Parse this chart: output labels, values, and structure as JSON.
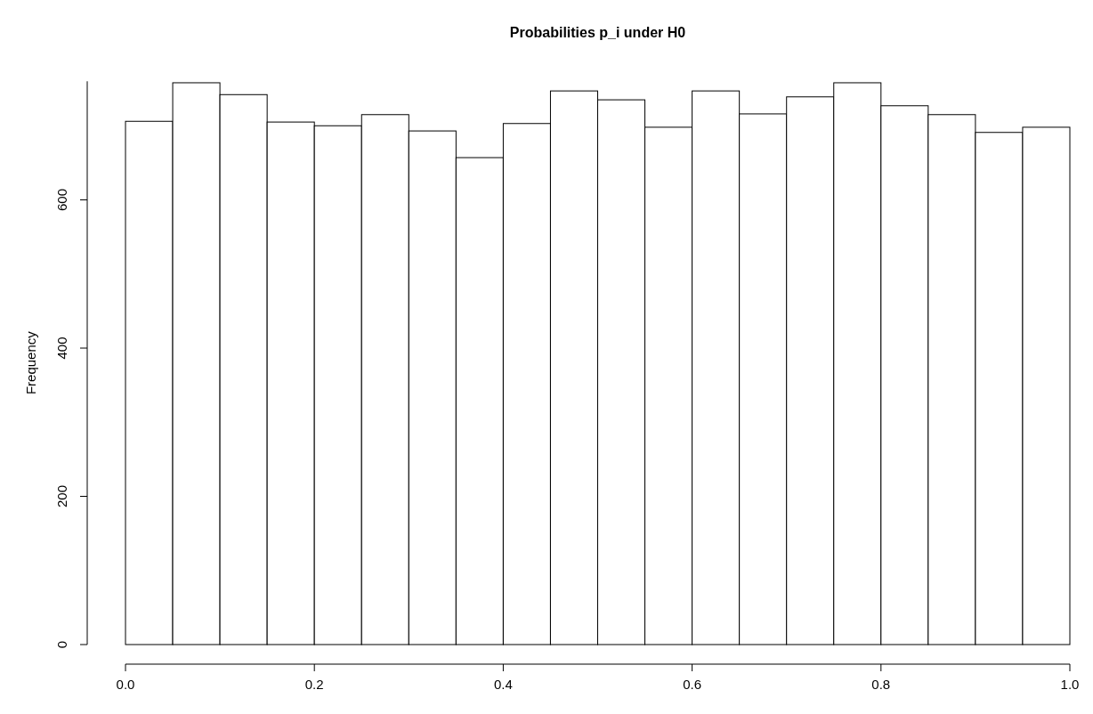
{
  "chart_data": {
    "type": "histogram",
    "title": "Probabilities p_i under H0",
    "ylabel": "Frequency",
    "bins": [
      0,
      0.05,
      0.1,
      0.15,
      0.2,
      0.25,
      0.3,
      0.35,
      0.4,
      0.45,
      0.5,
      0.55,
      0.6,
      0.65,
      0.7,
      0.75,
      0.8,
      0.85,
      0.9,
      0.95,
      1.0
    ],
    "values": [
      706,
      758,
      742,
      705,
      700,
      715,
      693,
      657,
      703,
      747,
      735,
      698,
      747,
      716,
      739,
      758,
      727,
      715,
      691,
      698
    ],
    "color": "#ffffff",
    "xlim": [
      0,
      1
    ],
    "xticks": [
      {
        "value": 0,
        "label": "0.0"
      },
      0.2,
      0.4,
      0.6,
      0.8,
      {
        "value": 1,
        "label": "1.0"
      }
    ],
    "ylim": [
      0,
      760
    ],
    "yticks": [
      0,
      200,
      400,
      600
    ],
    "grid": false
  }
}
